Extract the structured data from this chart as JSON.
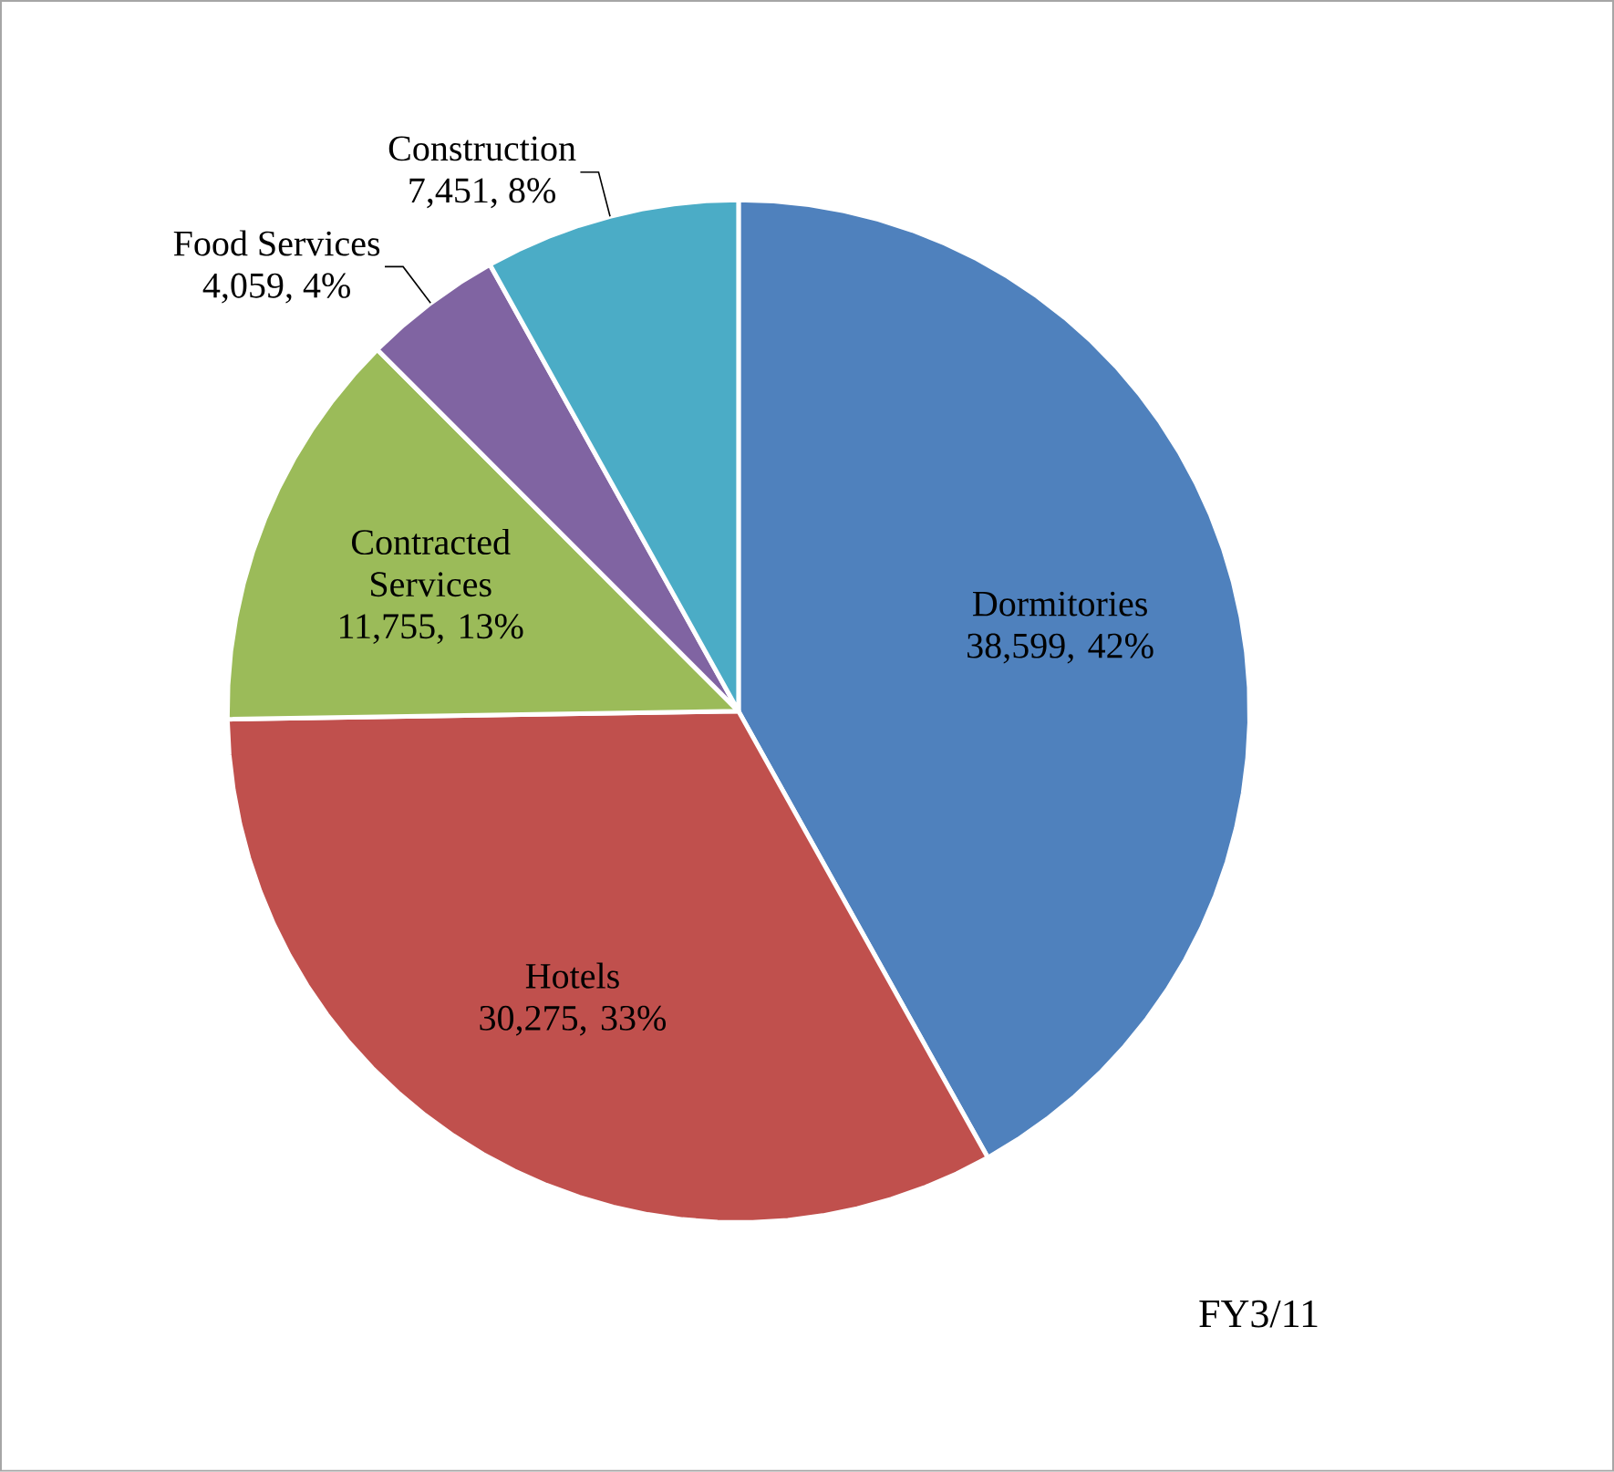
{
  "chart_data": {
    "type": "pie",
    "categories": [
      "Dormitories",
      "Hotels",
      "Contracted Services",
      "Food Services",
      "Construction"
    ],
    "values": [
      38599,
      30275,
      11755,
      4059,
      7451
    ],
    "value_labels": [
      "38,599, 42%",
      "30,275, 33%",
      "11,755, 13%",
      "4,059, 4%",
      "7,451, 8%"
    ],
    "colors": [
      "#4f81bd",
      "#c0504d",
      "#9bbb59",
      "#8064a2",
      "#4bacc6"
    ],
    "annotations": [
      "FY3/11"
    ]
  }
}
